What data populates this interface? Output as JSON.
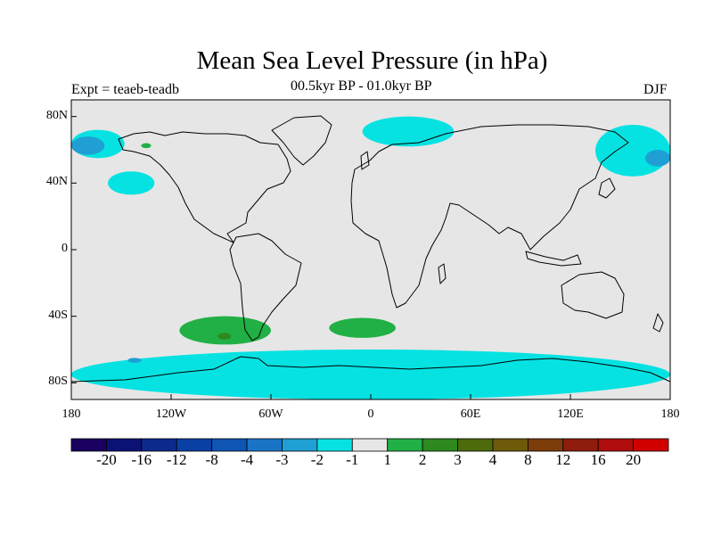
{
  "title": "Mean Sea Level Pressure (in hPa)",
  "left_label": "Expt = teaeb-teadb",
  "center_label": "00.5kyr BP - 01.0kyr BP",
  "right_label": "DJF",
  "lat_ticks": [
    {
      "value": 80,
      "label": "80N"
    },
    {
      "value": 40,
      "label": "40N"
    },
    {
      "value": 0,
      "label": "0"
    },
    {
      "value": -40,
      "label": "40S"
    },
    {
      "value": -80,
      "label": "80S"
    }
  ],
  "lon_ticks": [
    {
      "value": -180,
      "label": "180"
    },
    {
      "value": -120,
      "label": "120W"
    },
    {
      "value": -60,
      "label": "60W"
    },
    {
      "value": 0,
      "label": "0"
    },
    {
      "value": 60,
      "label": "60E"
    },
    {
      "value": 120,
      "label": "120E"
    },
    {
      "value": 180,
      "label": "180"
    }
  ],
  "colorbar": {
    "colors": [
      "#1a0060",
      "#0a1275",
      "#0b2a8c",
      "#0a3fa3",
      "#0f55b4",
      "#1a74c6",
      "#1f9fd3",
      "#06e2e2",
      "#e6e6e6",
      "#21b045",
      "#2e8a1e",
      "#4d6a0c",
      "#6e5a0a",
      "#7d3d0a",
      "#8f1d0c",
      "#b00d0d",
      "#d00000"
    ],
    "labels": [
      "-20",
      "-16",
      "-12",
      "-8",
      "-4",
      "-3",
      "-2",
      "-1",
      "1",
      "2",
      "3",
      "4",
      "8",
      "12",
      "16",
      "20"
    ]
  },
  "map_data": {
    "extent": {
      "lon": [
        -180,
        180
      ],
      "lat": [
        -90,
        90
      ]
    },
    "background": "#e6e6e6",
    "regions": [
      {
        "name": "north-pacific-anomaly",
        "value_bin": "-2 to -1",
        "color": "#06e2e2",
        "lon": [
          -180,
          -148
        ],
        "lat": [
          55,
          72
        ]
      },
      {
        "name": "north-pacific-core",
        "value_bin": "-3 to -2",
        "color": "#1f9fd3",
        "lon": [
          -180,
          -160
        ],
        "lat": [
          57,
          68
        ]
      },
      {
        "name": "northeast-pacific-anomaly",
        "value_bin": "-2 to -1",
        "color": "#06e2e2",
        "lon": [
          -158,
          -130
        ],
        "lat": [
          33,
          47
        ]
      },
      {
        "name": "alaska-positive",
        "value_bin": "1 to 2",
        "color": "#21b045",
        "lon": [
          -138,
          -132
        ],
        "lat": [
          61,
          64
        ]
      },
      {
        "name": "north-atlantic-anomaly",
        "value_bin": "-2 to -1",
        "color": "#06e2e2",
        "lon": [
          -5,
          50
        ],
        "lat": [
          62,
          80
        ]
      },
      {
        "name": "northwest-pacific-anomaly",
        "value_bin": "-2 to -1",
        "color": "#06e2e2",
        "lon": [
          135,
          180
        ],
        "lat": [
          44,
          75
        ]
      },
      {
        "name": "northwest-pacific-core",
        "value_bin": "-3 to -2",
        "color": "#1f9fd3",
        "lon": [
          165,
          180
        ],
        "lat": [
          50,
          60
        ]
      },
      {
        "name": "south-pacific-positive",
        "value_bin": "1 to 2",
        "color": "#21b045",
        "lon": [
          -115,
          -60
        ],
        "lat": [
          -57,
          -40
        ]
      },
      {
        "name": "south-pacific-core",
        "value_bin": "2 to 3",
        "color": "#2e8a1e",
        "lon": [
          -92,
          -84
        ],
        "lat": [
          -54,
          -50
        ]
      },
      {
        "name": "south-atlantic-positive",
        "value_bin": "1 to 2",
        "color": "#21b045",
        "lon": [
          -25,
          15
        ],
        "lat": [
          -53,
          -41
        ]
      },
      {
        "name": "southern-ocean-anomaly",
        "value_bin": "-2 to -1",
        "color": "#06e2e2",
        "lon": [
          -180,
          180
        ],
        "lat": [
          -90,
          -60
        ]
      },
      {
        "name": "southern-ocean-core",
        "value_bin": "-3 to -2",
        "color": "#1f9fd3",
        "lon": [
          -146,
          -138
        ],
        "lat": [
          -68,
          -65
        ]
      }
    ]
  }
}
